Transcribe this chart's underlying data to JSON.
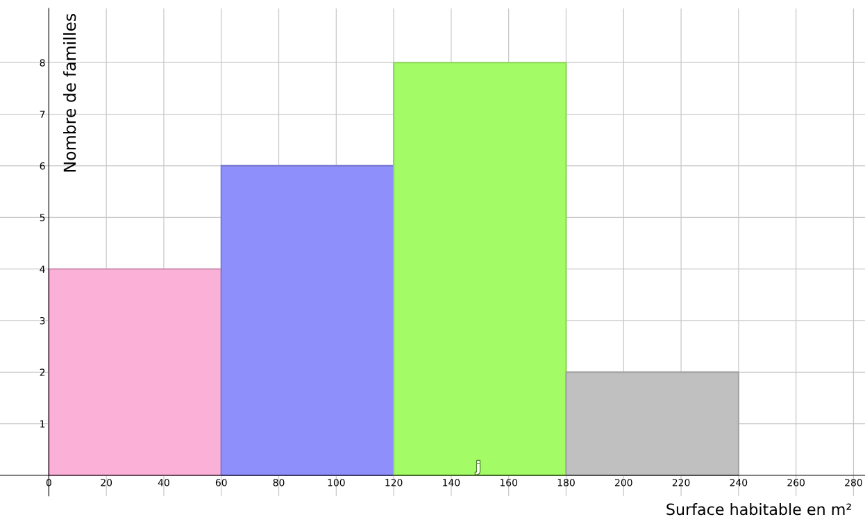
{
  "chart_data": {
    "type": "histogram",
    "xlabel": "Surface habitable en m²",
    "ylabel": "Nombre de familles",
    "bins": [
      0,
      60,
      120,
      180,
      240
    ],
    "values": [
      4,
      6,
      8,
      2
    ],
    "colors": [
      "#fbb0d8",
      "#8f8ffb",
      "#a3fb66",
      "#c0c0c0"
    ],
    "xlim": [
      -17,
      284
    ],
    "ylim": [
      -0.4,
      9.05
    ],
    "xticks": [
      0,
      20,
      40,
      60,
      80,
      100,
      120,
      140,
      160,
      180,
      200,
      220,
      240,
      260,
      280
    ],
    "yticks": [
      1,
      2,
      3,
      4,
      5,
      6,
      7,
      8
    ],
    "grid": true,
    "annotations": [
      "j"
    ]
  }
}
